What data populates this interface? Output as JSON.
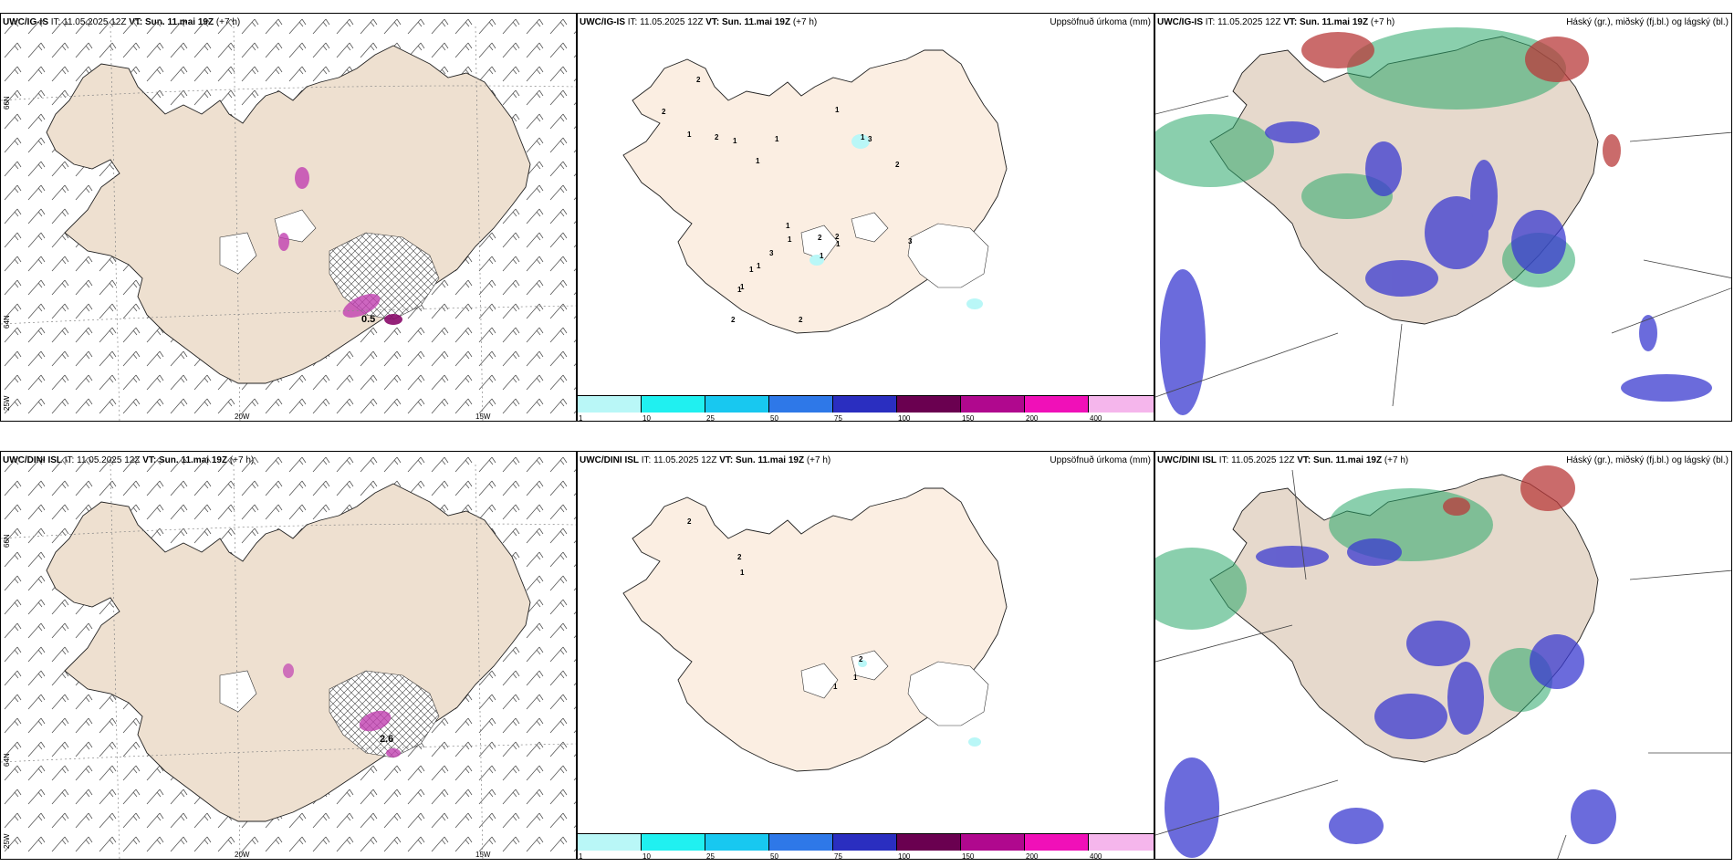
{
  "rows": [
    {
      "model": "UWC/IG-IS",
      "it_label": "IT:",
      "it": "11.05.2025 12Z",
      "vt_label": "VT:",
      "vt": "Sun. 11.mai 19Z",
      "lead": "(+7 h)",
      "max_label": "0.5",
      "accum_values": [
        "2",
        "2",
        "1",
        "2",
        "1",
        "1",
        "1",
        "1",
        "1",
        "3",
        "2",
        "1",
        "1",
        "2",
        "1",
        "1",
        "3",
        "1",
        "1",
        "1",
        "1",
        "2",
        "3",
        "2",
        "2"
      ]
    },
    {
      "model": "UWC/DINI ISL",
      "it_label": "IT:",
      "it": "11.05.2025 12Z",
      "vt_label": "VT:",
      "vt": "Sun. 11.mai 19Z",
      "lead": "(+7 h)",
      "max_label": "2.6",
      "accum_values": [
        "2",
        "2",
        "1",
        "2",
        "1",
        "1"
      ]
    }
  ],
  "precip_title": "Uppsöfnuð úrkoma (mm)",
  "cloud_title": "Háský (gr.), miðský (fj.bl.) og lágský (bl.)",
  "wind_axes": {
    "lon": [
      "20W",
      "15W"
    ],
    "lat": [
      "66N",
      "64N",
      "25W"
    ]
  },
  "precip_scale": {
    "ticks": [
      "1",
      "10",
      "25",
      "50",
      "75",
      "100",
      "150",
      "200",
      "400"
    ],
    "colors": [
      "#b9f7f7",
      "#20f0f0",
      "#18c8f0",
      "#2e78e8",
      "#2a2ec0",
      "#6a0050",
      "#b0088e",
      "#f010b8",
      "#f5b6ec"
    ]
  },
  "colors": {
    "land_wind": "#eee0d0",
    "land_precip": "#fbeee2",
    "land_cloud": "#e6d9cc",
    "high_cloud": "#b83a3a",
    "mid_cloud": "#2aa86a",
    "low_cloud": "#3a3ad0"
  }
}
